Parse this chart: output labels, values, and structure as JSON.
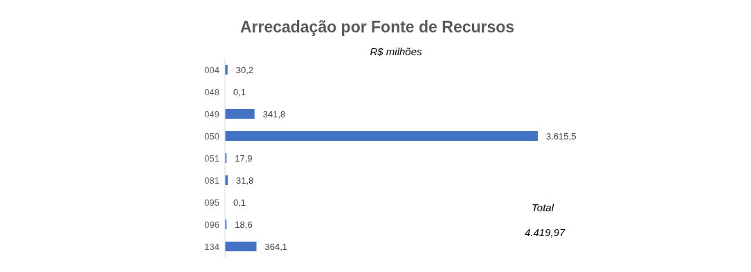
{
  "chart_data": {
    "type": "bar",
    "orientation": "horizontal",
    "title": "Arrecadação por Fonte de Recursos",
    "subtitle": "R$ milhões",
    "categories": [
      "004",
      "048",
      "049",
      "050",
      "051",
      "081",
      "095",
      "096",
      "134"
    ],
    "values": [
      30.2,
      0.1,
      341.8,
      3615.5,
      17.9,
      31.8,
      0.1,
      18.6,
      364.1
    ],
    "value_labels": [
      "30,2",
      "0,1",
      "341,8",
      "3.615,5",
      "17,9",
      "31,8",
      "0,1",
      "18,6",
      "364,1"
    ],
    "color": "#4472c4",
    "annotations": [
      "Total",
      "4.419,97"
    ]
  }
}
